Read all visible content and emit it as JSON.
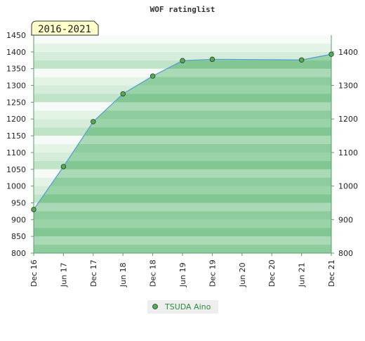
{
  "chart_data": {
    "type": "area",
    "title": "WOF ratinglist",
    "range_label": "2016-2021",
    "x_ticks": [
      "Dec 16",
      "Jun 17",
      "Dec 17",
      "Jun 18",
      "Dec 18",
      "Jun 19",
      "Dec 19",
      "Jun 20",
      "Dec 20",
      "Jun 21",
      "Dec 21"
    ],
    "y_left_ticks": [
      800,
      850,
      900,
      950,
      1000,
      1050,
      1100,
      1150,
      1200,
      1250,
      1300,
      1350,
      1400,
      1450
    ],
    "y_right_ticks": [
      800,
      900,
      1000,
      1100,
      1200,
      1300,
      1400
    ],
    "ylim": [
      800,
      1450
    ],
    "grid": "horizontal bands",
    "legend_position": "bottom-center",
    "colors": {
      "fill": "#6abf80",
      "line": "#5aa0d0",
      "marker": "#4caf50",
      "band_light": "#e3f3e6",
      "band_dark": "#c0e4c8"
    },
    "series": [
      {
        "name": "TSUDA Aino",
        "points": [
          {
            "x": "Dec 16",
            "y": 930
          },
          {
            "x": "Jun 17",
            "y": 1058
          },
          {
            "x": "Dec 17",
            "y": 1192
          },
          {
            "x": "Jun 18",
            "y": 1275
          },
          {
            "x": "Dec 18",
            "y": 1328
          },
          {
            "x": "Jun 19",
            "y": 1374
          },
          {
            "x": "Dec 19",
            "y": 1378
          },
          {
            "x": "Jun 21",
            "y": 1376
          },
          {
            "x": "Dec 21",
            "y": 1393
          }
        ]
      }
    ]
  }
}
